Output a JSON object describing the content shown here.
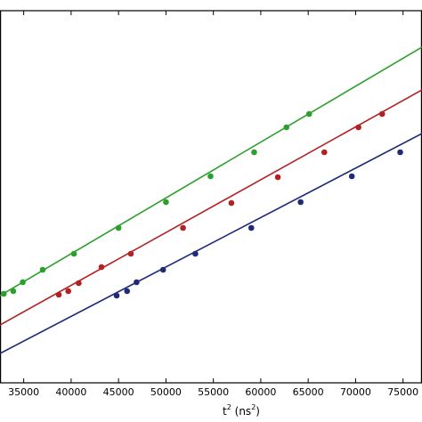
{
  "chart_data": {
    "type": "scatter",
    "title": "",
    "xlabel_base": "t",
    "xlabel_sup": "2",
    "xlabel_unit_open": " (ns",
    "xlabel_unit_sup": "2",
    "xlabel_unit_close": ")",
    "ylabel": "",
    "xlim": [
      32500,
      77000
    ],
    "x_ticks": [
      35000,
      40000,
      45000,
      50000,
      55000,
      60000,
      65000,
      70000,
      75000
    ],
    "x_tick_labels": [
      "35000",
      "40000",
      "45000",
      "50000",
      "55000",
      "60000",
      "65000",
      "70000",
      "75000"
    ],
    "grid": false,
    "series": [
      {
        "color": "#2ca02c",
        "points": [
          [
            32900,
            330
          ],
          [
            33900,
            327
          ],
          [
            34900,
            317
          ],
          [
            37000,
            303
          ],
          [
            40300,
            285
          ],
          [
            45000,
            256
          ],
          [
            50000,
            227
          ],
          [
            54700,
            198
          ],
          [
            59300,
            171
          ],
          [
            62700,
            143
          ],
          [
            65100,
            128
          ]
        ],
        "fit": [
          [
            32500,
            332
          ],
          [
            77000,
            53
          ]
        ]
      },
      {
        "color": "#b22222",
        "points": [
          [
            38700,
            331
          ],
          [
            39700,
            327
          ],
          [
            40800,
            318
          ],
          [
            43200,
            300
          ],
          [
            46300,
            285
          ],
          [
            51800,
            256
          ],
          [
            56900,
            228
          ],
          [
            61800,
            199
          ],
          [
            66700,
            171
          ],
          [
            70300,
            143
          ],
          [
            72800,
            128
          ]
        ],
        "fit": [
          [
            32500,
            365
          ],
          [
            77000,
            101
          ]
        ]
      },
      {
        "color": "#1f2a7a",
        "points": [
          [
            44800,
            332
          ],
          [
            45900,
            327
          ],
          [
            46900,
            317
          ],
          [
            49700,
            303
          ],
          [
            53100,
            285
          ],
          [
            59000,
            256
          ],
          [
            64200,
            227
          ],
          [
            69600,
            198
          ],
          [
            74700,
            171
          ]
        ],
        "fit": [
          [
            32500,
            397
          ],
          [
            77000,
            150
          ]
        ]
      }
    ]
  }
}
